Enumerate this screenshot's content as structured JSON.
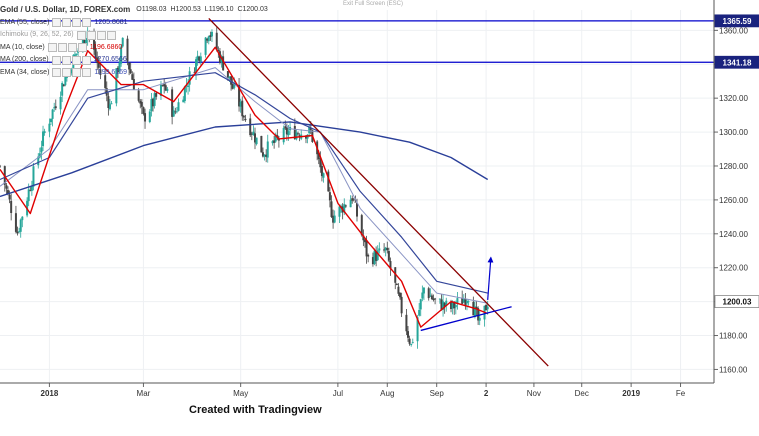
{
  "header": {
    "symbol": "Gold / U.S. Dollar, 1D, FOREX.com",
    "ohlc": [
      {
        "label": "O",
        "value": "1198.03"
      },
      {
        "label": "H",
        "value": "1200.53"
      },
      {
        "label": "L",
        "value": "1196.10"
      },
      {
        "label": "C",
        "value": "1200.03"
      }
    ],
    "exit_label": "Exit Full Screen (ESC)"
  },
  "indicators": [
    {
      "name": "EMA (55, close)",
      "value": "1205.8681",
      "color": "#1a237e"
    },
    {
      "name": "Ichimoku (9, 26, 52, 26)",
      "value": "",
      "color": "#9e9e9e"
    },
    {
      "name": "MA (10, close)",
      "value": "1196.6860",
      "color": "#d50000"
    },
    {
      "name": "MA (200, close)",
      "value": "1270.6566",
      "color": "#283593"
    },
    {
      "name": "EMA (34, close)",
      "value": "1199.6169",
      "color": "#3f51b5"
    }
  ],
  "colors": {
    "up": "#26a69a",
    "down": "#444444",
    "trend": "#8b0000",
    "level": "#0000cc",
    "ma10": "#e00000",
    "ma200": "#2a3f99",
    "ema": "#34469a",
    "ema34": "#8a94c4"
  },
  "credit": "Created with Tradingview",
  "chart_data": {
    "type": "candlestick",
    "x_axis": {
      "ticks": [
        "2018",
        "Mar",
        "May",
        "Jul",
        "Aug",
        "Sep",
        "2",
        "Nov",
        "Dec",
        "2019",
        "Fe"
      ]
    },
    "y_axis": {
      "range": [
        1152,
        1372
      ],
      "ticks": [
        1160,
        1180,
        1200,
        1220,
        1240,
        1260,
        1280,
        1300,
        1320,
        1340,
        1360
      ]
    },
    "price_labels": [
      {
        "label": "1365.59",
        "value": 1365.59,
        "style": "dark"
      },
      {
        "label": "1341.18",
        "value": 1341.18,
        "style": "dark"
      },
      {
        "label": "1200.03",
        "value": 1200.03,
        "style": "light"
      }
    ],
    "horizontal_lines": [
      1365.59,
      1341.18
    ],
    "anchors": [
      {
        "date": "2017-12-01",
        "price": 1280
      },
      {
        "date": "2017-12-12",
        "price": 1241
      },
      {
        "date": "2017-12-29",
        "price": 1300
      },
      {
        "date": "2018-01-12",
        "price": 1335
      },
      {
        "date": "2018-01-25",
        "price": 1360
      },
      {
        "date": "2018-02-08",
        "price": 1315
      },
      {
        "date": "2018-02-16",
        "price": 1352
      },
      {
        "date": "2018-03-01",
        "price": 1308
      },
      {
        "date": "2018-03-14",
        "price": 1328
      },
      {
        "date": "2018-03-20",
        "price": 1310
      },
      {
        "date": "2018-04-11",
        "price": 1360
      },
      {
        "date": "2018-04-20",
        "price": 1340
      },
      {
        "date": "2018-05-03",
        "price": 1310
      },
      {
        "date": "2018-05-15",
        "price": 1288
      },
      {
        "date": "2018-05-30",
        "price": 1300
      },
      {
        "date": "2018-06-14",
        "price": 1300
      },
      {
        "date": "2018-06-28",
        "price": 1250
      },
      {
        "date": "2018-07-10",
        "price": 1262
      },
      {
        "date": "2018-07-20",
        "price": 1225
      },
      {
        "date": "2018-07-31",
        "price": 1230
      },
      {
        "date": "2018-08-16",
        "price": 1174
      },
      {
        "date": "2018-08-24",
        "price": 1208
      },
      {
        "date": "2018-08-31",
        "price": 1200
      },
      {
        "date": "2018-09-10",
        "price": 1196
      },
      {
        "date": "2018-09-21",
        "price": 1204
      },
      {
        "date": "2018-09-28",
        "price": 1186
      },
      {
        "date": "2018-10-03",
        "price": 1200
      }
    ],
    "moving_averages": {
      "ma200": [
        {
          "date": "2017-12-01",
          "price": 1262
        },
        {
          "date": "2018-01-15",
          "price": 1276
        },
        {
          "date": "2018-03-01",
          "price": 1292
        },
        {
          "date": "2018-04-15",
          "price": 1303
        },
        {
          "date": "2018-06-01",
          "price": 1306
        },
        {
          "date": "2018-07-15",
          "price": 1300
        },
        {
          "date": "2018-08-15",
          "price": 1294
        },
        {
          "date": "2018-09-10",
          "price": 1285
        },
        {
          "date": "2018-10-03",
          "price": 1272
        }
      ],
      "ema55": [
        {
          "date": "2017-12-01",
          "price": 1272
        },
        {
          "date": "2018-01-01",
          "price": 1285
        },
        {
          "date": "2018-01-25",
          "price": 1320
        },
        {
          "date": "2018-03-01",
          "price": 1330
        },
        {
          "date": "2018-04-15",
          "price": 1335
        },
        {
          "date": "2018-05-10",
          "price": 1322
        },
        {
          "date": "2018-06-01",
          "price": 1308
        },
        {
          "date": "2018-06-20",
          "price": 1300
        },
        {
          "date": "2018-07-15",
          "price": 1265
        },
        {
          "date": "2018-08-10",
          "price": 1238
        },
        {
          "date": "2018-09-01",
          "price": 1212
        },
        {
          "date": "2018-10-03",
          "price": 1205
        }
      ],
      "ema34": [
        {
          "date": "2017-12-01",
          "price": 1268
        },
        {
          "date": "2018-01-01",
          "price": 1290
        },
        {
          "date": "2018-01-25",
          "price": 1325
        },
        {
          "date": "2018-03-01",
          "price": 1325
        },
        {
          "date": "2018-04-15",
          "price": 1338
        },
        {
          "date": "2018-05-10",
          "price": 1318
        },
        {
          "date": "2018-06-01",
          "price": 1302
        },
        {
          "date": "2018-06-20",
          "price": 1300
        },
        {
          "date": "2018-07-15",
          "price": 1255
        },
        {
          "date": "2018-08-10",
          "price": 1228
        },
        {
          "date": "2018-09-01",
          "price": 1205
        },
        {
          "date": "2018-10-03",
          "price": 1199
        }
      ],
      "ma10": [
        {
          "date": "2017-12-01",
          "price": 1278
        },
        {
          "date": "2017-12-20",
          "price": 1252
        },
        {
          "date": "2018-01-10",
          "price": 1312
        },
        {
          "date": "2018-01-25",
          "price": 1348
        },
        {
          "date": "2018-02-15",
          "price": 1328
        },
        {
          "date": "2018-03-01",
          "price": 1328
        },
        {
          "date": "2018-03-20",
          "price": 1318
        },
        {
          "date": "2018-04-15",
          "price": 1350
        },
        {
          "date": "2018-05-10",
          "price": 1310
        },
        {
          "date": "2018-05-25",
          "price": 1296
        },
        {
          "date": "2018-06-15",
          "price": 1298
        },
        {
          "date": "2018-07-01",
          "price": 1258
        },
        {
          "date": "2018-07-20",
          "price": 1235
        },
        {
          "date": "2018-08-10",
          "price": 1212
        },
        {
          "date": "2018-08-22",
          "price": 1185
        },
        {
          "date": "2018-09-10",
          "price": 1200
        },
        {
          "date": "2018-09-25",
          "price": 1196
        },
        {
          "date": "2018-10-03",
          "price": 1193
        }
      ]
    },
    "trendlines": [
      {
        "name": "descending-trendline",
        "from": {
          "date": "2018-04-11",
          "price": 1367
        },
        "to": {
          "date": "2018-11-10",
          "price": 1162
        }
      },
      {
        "name": "rising-support-line",
        "from": {
          "date": "2018-08-22",
          "price": 1183
        },
        "to": {
          "date": "2018-10-18",
          "price": 1197
        }
      }
    ],
    "arrow": {
      "from": {
        "date": "2018-10-03",
        "price": 1201
      },
      "to": {
        "date": "2018-10-05",
        "price": 1226
      }
    }
  }
}
